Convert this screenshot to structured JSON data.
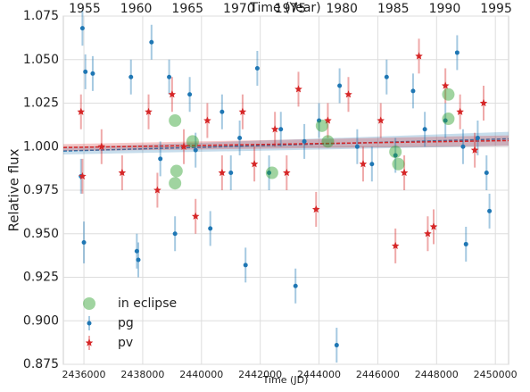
{
  "chart_data": {
    "type": "scatter",
    "xlabel": "Time (JD)",
    "x2label": "Time (Year)",
    "ylabel": "Relative flux",
    "xlim": [
      2435300,
      2450450
    ],
    "x2lim": [
      1952.92,
      1996.21
    ],
    "ylim": [
      0.875,
      1.075
    ],
    "xticks": [
      2436000,
      2438000,
      2440000,
      2442000,
      2444000,
      2446000,
      2448000,
      2450000
    ],
    "x2ticks": [
      1955,
      1960,
      1965,
      1970,
      1975,
      1980,
      1985,
      1990,
      1995
    ],
    "yticks": [
      0.875,
      {
        "value": 0.9,
        "label": "0.900"
      },
      0.925,
      {
        "value": 0.95,
        "label": "0.950"
      },
      0.975,
      {
        "value": 1.0,
        "label": "1.000"
      },
      1.025,
      {
        "value": 1.05,
        "label": "1.050"
      },
      1.075
    ],
    "grid": true,
    "legend": "lower left",
    "fits": [
      {
        "color": "#1f77b4",
        "x": [
          2435300,
          2450450
        ],
        "values": [
          0.9975,
          1.0045
        ],
        "band": [
          0.002,
          0.004
        ]
      },
      {
        "color": "#d62728",
        "x": [
          2435300,
          2450450
        ],
        "values": [
          0.9995,
          1.0035
        ],
        "band": [
          0.002,
          0.003
        ]
      }
    ],
    "series": [
      {
        "name": "in eclipse",
        "color": "#2ca02c",
        "marker": "big-circle",
        "x": [
          2439100,
          2439150,
          2439100,
          2439700,
          2442400,
          2444100,
          2444300,
          2446600,
          2446700,
          2448400,
          2448400
        ],
        "values": [
          1.015,
          0.986,
          0.979,
          1.003,
          0.985,
          1.012,
          1.003,
          0.997,
          0.99,
          1.03,
          1.016
        ]
      },
      {
        "name": "pg",
        "color": "#1f77b4",
        "marker": "circle",
        "x": [
          2435950,
          2436050,
          2436000,
          2436300,
          2435900,
          2437600,
          2437800,
          2437850,
          2438300,
          2438600,
          2438900,
          2439100,
          2439600,
          2439800,
          2440300,
          2440700,
          2441000,
          2441300,
          2441500,
          2441900,
          2442300,
          2442700,
          2443200,
          2443500,
          2444000,
          2444600,
          2444700,
          2445300,
          2445800,
          2446300,
          2446600,
          2447200,
          2447600,
          2448300,
          2448700,
          2449000,
          2449400,
          2449800,
          2449700,
          2448900
        ],
        "values": [
          1.068,
          1.043,
          0.945,
          1.042,
          0.983,
          1.04,
          0.94,
          0.935,
          1.06,
          0.993,
          1.04,
          0.95,
          1.03,
          0.998,
          0.953,
          1.02,
          0.985,
          1.005,
          0.932,
          1.045,
          0.985,
          1.01,
          0.92,
          1.003,
          1.015,
          0.886,
          1.035,
          1.0,
          0.99,
          1.04,
          0.995,
          1.032,
          1.01,
          1.015,
          1.054,
          0.944,
          1.005,
          0.963,
          0.985,
          1.0
        ],
        "errors": [
          0.01,
          0.01,
          0.012,
          0.01,
          0.01,
          0.01,
          0.01,
          0.01,
          0.01,
          0.01,
          0.01,
          0.01,
          0.01,
          0.01,
          0.01,
          0.01,
          0.01,
          0.01,
          0.01,
          0.01,
          0.01,
          0.01,
          0.01,
          0.01,
          0.01,
          0.01,
          0.01,
          0.01,
          0.01,
          0.01,
          0.01,
          0.01,
          0.01,
          0.01,
          0.01,
          0.01,
          0.01,
          0.01,
          0.01,
          0.01
        ]
      },
      {
        "name": "pv",
        "color": "#d62728",
        "marker": "star",
        "x": [
          2435900,
          2435950,
          2436600,
          2437300,
          2438200,
          2438500,
          2439000,
          2439400,
          2439800,
          2440200,
          2440700,
          2441400,
          2441800,
          2442500,
          2442900,
          2443300,
          2443900,
          2444300,
          2445000,
          2445500,
          2446100,
          2446600,
          2446900,
          2447400,
          2447700,
          2447900,
          2448300,
          2448800,
          2449300,
          2449600
        ],
        "values": [
          1.02,
          0.983,
          1.0,
          0.985,
          1.02,
          0.975,
          1.03,
          1.0,
          0.96,
          1.015,
          0.985,
          1.02,
          0.99,
          1.01,
          0.985,
          1.033,
          0.964,
          1.015,
          1.03,
          0.99,
          1.015,
          0.943,
          0.985,
          1.052,
          0.95,
          0.954,
          1.035,
          1.02,
          0.998,
          1.025
        ],
        "errors": [
          0.01,
          0.01,
          0.01,
          0.01,
          0.01,
          0.01,
          0.01,
          0.01,
          0.01,
          0.01,
          0.01,
          0.01,
          0.01,
          0.01,
          0.01,
          0.01,
          0.01,
          0.01,
          0.01,
          0.01,
          0.01,
          0.01,
          0.01,
          0.01,
          0.01,
          0.01,
          0.01,
          0.01,
          0.01,
          0.01
        ]
      }
    ]
  }
}
